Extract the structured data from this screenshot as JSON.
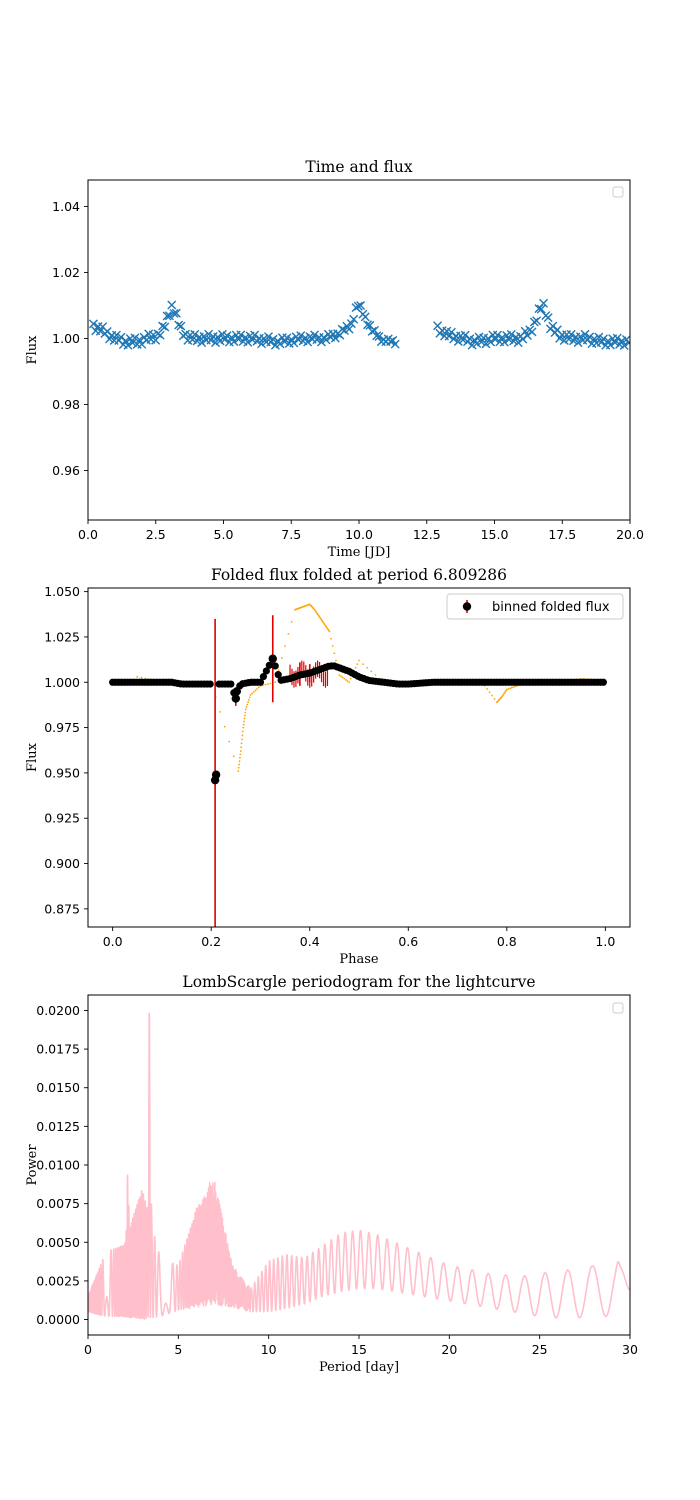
{
  "chart_data": [
    {
      "type": "scatter",
      "title": "Time and flux",
      "xlabel": "Time [JD]",
      "ylabel": "Flux",
      "xlim": [
        0,
        20
      ],
      "ylim": [
        0.945,
        1.048
      ],
      "xticks": [
        0,
        2.5,
        5,
        7.5,
        10,
        12.5,
        15,
        17.5,
        20
      ],
      "xtick_labels": [
        "0.0",
        "2.5",
        "5.0",
        "7.5",
        "10.0",
        "12.5",
        "15.0",
        "17.5",
        "20.0"
      ],
      "yticks": [
        0.96,
        0.98,
        1.0,
        1.02,
        1.04
      ],
      "ytick_labels": [
        "0.96",
        "0.98",
        "1.00",
        "1.02",
        "1.04"
      ],
      "legend": "top-right (empty)",
      "marker": "x",
      "color": "#1f77b4",
      "series": [
        {
          "x": [
            0.2,
            0.6,
            1.0,
            1.4,
            1.8,
            2.2,
            2.6,
            2.8,
            3.0,
            3.1,
            3.2,
            3.4,
            3.6,
            3.8,
            4.2,
            5.0,
            6.0,
            7.0,
            8.0,
            8.8,
            9.4,
            9.7,
            9.9,
            10.0,
            10.2,
            10.5,
            10.8,
            11.1,
            11.4,
            12.9,
            13.3,
            13.8,
            14.3,
            15.0,
            15.6,
            16.0,
            16.3,
            16.5,
            16.7,
            16.8,
            16.9,
            17.1,
            17.4,
            17.8,
            18.4,
            19.0,
            19.5,
            20.0
          ],
          "y": [
            1.004,
            1.002,
            1.0,
            0.999,
            0.999,
            1.0,
            1.001,
            1.003,
            1.008,
            1.01,
            1.008,
            1.003,
            1.001,
            1.0,
            1.0,
            1.0,
            1.0,
            0.999,
            1.0,
            1.0,
            1.002,
            1.004,
            1.009,
            1.01,
            1.007,
            1.002,
            1.0,
            0.999,
            0.999,
            1.003,
            1.001,
            1.0,
            0.999,
            1.0,
            1.0,
            1.0,
            1.002,
            1.005,
            1.009,
            1.01,
            1.008,
            1.003,
            1.001,
            1.0,
            1.0,
            0.999,
            0.999,
            0.999
          ]
        }
      ]
    },
    {
      "type": "scatter",
      "title": "Folded flux folded at period 6.809286",
      "xlabel": "Phase",
      "ylabel": "Flux",
      "xlim": [
        -0.05,
        1.05
      ],
      "ylim": [
        0.865,
        1.052
      ],
      "xticks": [
        0,
        0.2,
        0.4,
        0.6,
        0.8,
        1.0
      ],
      "xtick_labels": [
        "0.0",
        "0.2",
        "0.4",
        "0.6",
        "0.8",
        "1.0"
      ],
      "yticks": [
        0.875,
        0.9,
        0.925,
        0.95,
        0.975,
        1.0,
        1.025,
        1.05
      ],
      "ytick_labels": [
        "0.875",
        "0.900",
        "0.925",
        "0.950",
        "0.975",
        "1.000",
        "1.025",
        "1.050"
      ],
      "legend": "top-right",
      "series": [
        {
          "name": "binned folded flux",
          "color": "#000000",
          "x": [
            0.0,
            0.02,
            0.04,
            0.06,
            0.08,
            0.1,
            0.12,
            0.14,
            0.16,
            0.18,
            0.2,
            0.208,
            0.21,
            0.22,
            0.24,
            0.25,
            0.252,
            0.26,
            0.28,
            0.3,
            0.325,
            0.34,
            0.36,
            0.38,
            0.4,
            0.42,
            0.44,
            0.45,
            0.46,
            0.48,
            0.5,
            0.52,
            0.55,
            0.58,
            0.6,
            0.65,
            0.7,
            0.75,
            0.8,
            0.85,
            0.9,
            0.95,
            1.0
          ],
          "y": [
            1.0,
            1.0,
            1.0,
            1.0,
            1.0,
            1.0,
            1.0,
            0.999,
            0.999,
            0.999,
            0.999,
            0.946,
            0.949,
            0.999,
            0.999,
            0.991,
            0.995,
            0.999,
            1.0,
            1.0,
            1.013,
            1.001,
            1.002,
            1.004,
            1.005,
            1.007,
            1.009,
            1.009,
            1.008,
            1.006,
            1.003,
            1.001,
            1.0,
            0.999,
            0.999,
            1.0,
            1.0,
            1.0,
            1.0,
            1.0,
            1.0,
            1.0,
            1.0
          ]
        }
      ],
      "errorbars": [
        {
          "x": 0.208,
          "y": 0.946,
          "yerr_low": 0.862,
          "yerr_high": 1.035
        },
        {
          "x": 0.325,
          "y": 1.013,
          "yerr_low": 0.989,
          "yerr_high": 1.037
        },
        {
          "x": 0.25,
          "y": 0.991,
          "yerr_low": 0.987,
          "yerr_high": 0.996
        },
        {
          "x": 0.38,
          "y": 1.004,
          "yerr_low": 0.998,
          "yerr_high": 1.011
        },
        {
          "x": 0.4,
          "y": 1.005,
          "yerr_low": 1.0,
          "yerr_high": 1.01
        }
      ],
      "raw_points": {
        "color": "#ffa500",
        "x": [
          0.05,
          0.1,
          0.15,
          0.2,
          0.255,
          0.26,
          0.265,
          0.27,
          0.28,
          0.3,
          0.33,
          0.37,
          0.38,
          0.39,
          0.4,
          0.41,
          0.42,
          0.43,
          0.44,
          0.46,
          0.48,
          0.5,
          0.55,
          0.6,
          0.7,
          0.75,
          0.78,
          0.79,
          0.8,
          0.82,
          0.85,
          0.9,
          0.95,
          0.99
        ],
        "y": [
          1.003,
          1.0,
          0.999,
          1.0,
          0.951,
          0.962,
          0.975,
          0.985,
          0.993,
          0.998,
          1.0,
          1.04,
          1.041,
          1.042,
          1.043,
          1.04,
          1.036,
          1.032,
          1.028,
          1.004,
          1.0,
          1.012,
          1.0,
          0.999,
          1.001,
          1.0,
          0.989,
          0.992,
          0.996,
          0.998,
          1.0,
          1.0,
          1.002,
          1.001
        ]
      }
    },
    {
      "type": "line",
      "title": "LombScargle periodogram for the lightcurve",
      "xlabel": "Period [day]",
      "ylabel": "Power",
      "xlim": [
        0,
        30
      ],
      "ylim": [
        -0.001,
        0.021
      ],
      "xticks": [
        0,
        5,
        10,
        15,
        20,
        25,
        30
      ],
      "xtick_labels": [
        "0",
        "5",
        "10",
        "15",
        "20",
        "25",
        "30"
      ],
      "yticks": [
        0.0,
        0.0025,
        0.005,
        0.0075,
        0.01,
        0.0125,
        0.015,
        0.0175,
        0.02
      ],
      "ytick_labels": [
        "0.0000",
        "0.0025",
        "0.0050",
        "0.0075",
        "0.0100",
        "0.0125",
        "0.0150",
        "0.0175",
        "0.0200"
      ],
      "legend": "top-right (empty)",
      "color": "#ffc0cb",
      "peaks": [
        {
          "x": 3.4,
          "y": 0.02
        },
        {
          "x": 2.2,
          "y": 0.0095
        },
        {
          "x": 6.8,
          "y": 0.0091
        },
        {
          "x": 1.1,
          "y": 0.0046
        },
        {
          "x": 14.8,
          "y": 0.0058
        },
        {
          "x": 29.3,
          "y": 0.0039
        }
      ],
      "envelope": {
        "x": [
          0,
          1,
          2,
          3,
          4,
          5,
          6,
          7,
          8,
          9,
          10,
          11,
          12,
          13,
          14,
          15,
          16,
          17,
          18,
          19,
          20,
          21,
          22,
          23,
          24,
          25,
          26,
          27,
          28,
          29,
          30
        ],
        "upper": [
          0.0015,
          0.0044,
          0.0048,
          0.0085,
          0.004,
          0.0035,
          0.0072,
          0.009,
          0.0035,
          0.002,
          0.0038,
          0.0042,
          0.004,
          0.0048,
          0.0056,
          0.0058,
          0.0055,
          0.005,
          0.0045,
          0.004,
          0.0035,
          0.0033,
          0.003,
          0.0029,
          0.0028,
          0.003,
          0.0031,
          0.0033,
          0.0035,
          0.0038,
          0.003
        ],
        "lower": [
          0.0005,
          0.0002,
          0.0002,
          0.0,
          0.0002,
          0.0006,
          0.0008,
          0.001,
          0.0008,
          0.0005,
          0.0005,
          0.0007,
          0.001,
          0.0015,
          0.0018,
          0.002,
          0.002,
          0.0018,
          0.0016,
          0.0014,
          0.0012,
          0.001,
          0.0008,
          0.0006,
          0.0004,
          0.0002,
          0.0001,
          0.0001,
          0.0002,
          0.0002,
          0.0015
        ]
      }
    }
  ]
}
